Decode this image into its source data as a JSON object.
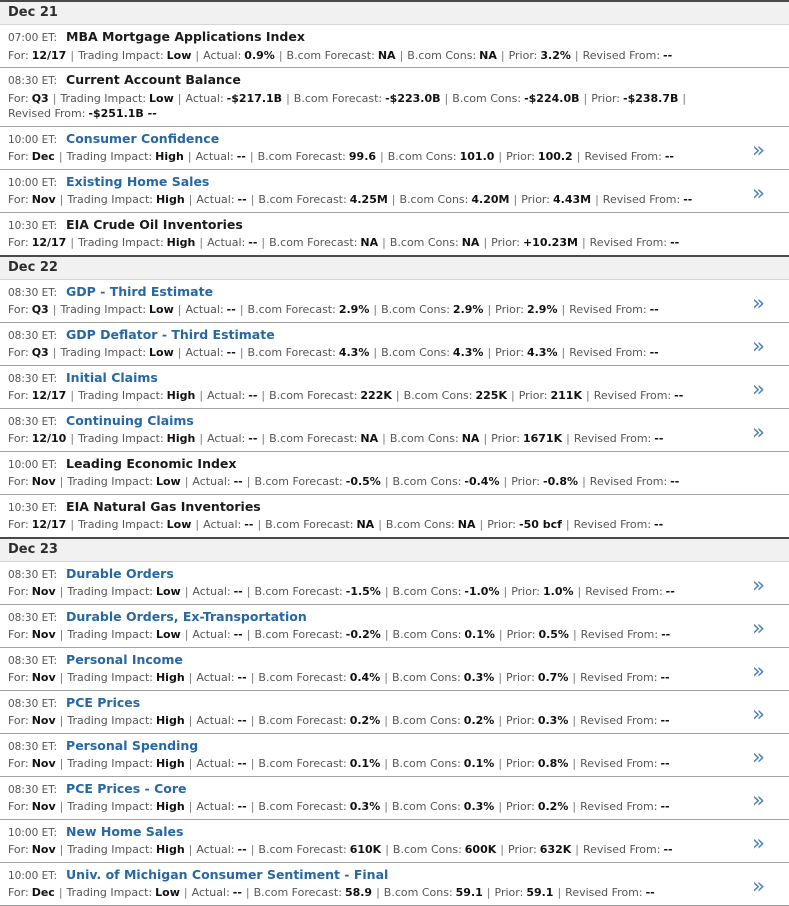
{
  "calendar": {
    "chevron": "»",
    "separator": "|",
    "detail_labels": [
      "For:",
      "Trading Impact:",
      "Actual:",
      "B.com Forecast:",
      "B.com Cons:",
      "Prior:",
      "Revised From:"
    ],
    "colors": {
      "link_blue": "#2767a3",
      "chevron_blue": "#4e81b5",
      "header_background": "#f1f1f1",
      "divider_gray": "#a3a3a3"
    },
    "days": [
      {
        "date": "Dec 21",
        "events": [
          {
            "time": "07:00 ET:",
            "title": "MBA Mortgage Applications Index",
            "link": false,
            "chevron": false,
            "values": [
              "12/17",
              "Low",
              "0.9%",
              "NA",
              "NA",
              "3.2%",
              "--"
            ]
          },
          {
            "time": "08:30 ET:",
            "title": "Current Account Balance",
            "link": false,
            "chevron": false,
            "wrap_before_last": true,
            "values": [
              "Q3",
              "Low",
              "-$217.1B",
              "-$223.0B",
              "-$224.0B",
              "-$238.7B",
              "-$251.1B --"
            ]
          },
          {
            "time": "10:00 ET:",
            "title": "Consumer Confidence",
            "link": true,
            "chevron": true,
            "values": [
              "Dec",
              "High",
              "--",
              "99.6",
              "101.0",
              "100.2",
              "--"
            ]
          },
          {
            "time": "10:00 ET:",
            "title": "Existing Home Sales",
            "link": true,
            "chevron": true,
            "values": [
              "Nov",
              "High",
              "--",
              "4.25M",
              "4.20M",
              "4.43M",
              "--"
            ]
          },
          {
            "time": "10:30 ET:",
            "title": "EIA Crude Oil Inventories",
            "link": false,
            "chevron": false,
            "values": [
              "12/17",
              "High",
              "--",
              "NA",
              "NA",
              "+10.23M",
              "--"
            ]
          }
        ]
      },
      {
        "date": "Dec 22",
        "events": [
          {
            "time": "08:30 ET:",
            "title": "GDP - Third Estimate",
            "link": true,
            "chevron": true,
            "values": [
              "Q3",
              "Low",
              "--",
              "2.9%",
              "2.9%",
              "2.9%",
              "--"
            ]
          },
          {
            "time": "08:30 ET:",
            "title": "GDP Deflator - Third Estimate",
            "link": true,
            "chevron": true,
            "values": [
              "Q3",
              "Low",
              "--",
              "4.3%",
              "4.3%",
              "4.3%",
              "--"
            ]
          },
          {
            "time": "08:30 ET:",
            "title": "Initial Claims",
            "link": true,
            "chevron": true,
            "values": [
              "12/17",
              "High",
              "--",
              "222K",
              "225K",
              "211K",
              "--"
            ]
          },
          {
            "time": "08:30 ET:",
            "title": "Continuing Claims",
            "link": true,
            "chevron": true,
            "values": [
              "12/10",
              "High",
              "--",
              "NA",
              "NA",
              "1671K",
              "--"
            ]
          },
          {
            "time": "10:00 ET:",
            "title": "Leading Economic Index",
            "link": false,
            "chevron": false,
            "values": [
              "Nov",
              "Low",
              "--",
              "-0.5%",
              "-0.4%",
              "-0.8%",
              "--"
            ]
          },
          {
            "time": "10:30 ET:",
            "title": "EIA Natural Gas Inventories",
            "link": false,
            "chevron": false,
            "values": [
              "12/17",
              "Low",
              "--",
              "NA",
              "NA",
              "-50 bcf",
              "--"
            ]
          }
        ]
      },
      {
        "date": "Dec 23",
        "events": [
          {
            "time": "08:30 ET:",
            "title": "Durable Orders",
            "link": true,
            "chevron": true,
            "values": [
              "Nov",
              "Low",
              "--",
              "-1.5%",
              "-1.0%",
              "1.0%",
              "--"
            ]
          },
          {
            "time": "08:30 ET:",
            "title": "Durable Orders, Ex-Transportation",
            "link": true,
            "chevron": true,
            "values": [
              "Nov",
              "Low",
              "--",
              "-0.2%",
              "0.1%",
              "0.5%",
              "--"
            ]
          },
          {
            "time": "08:30 ET:",
            "title": "Personal Income",
            "link": true,
            "chevron": true,
            "values": [
              "Nov",
              "High",
              "--",
              "0.4%",
              "0.3%",
              "0.7%",
              "--"
            ]
          },
          {
            "time": "08:30 ET:",
            "title": "PCE Prices",
            "link": true,
            "chevron": true,
            "values": [
              "Nov",
              "High",
              "--",
              "0.2%",
              "0.2%",
              "0.3%",
              "--"
            ]
          },
          {
            "time": "08:30 ET:",
            "title": "Personal Spending",
            "link": true,
            "chevron": true,
            "values": [
              "Nov",
              "High",
              "--",
              "0.1%",
              "0.1%",
              "0.8%",
              "--"
            ]
          },
          {
            "time": "08:30 ET:",
            "title": "PCE Prices - Core",
            "link": true,
            "chevron": true,
            "values": [
              "Nov",
              "High",
              "--",
              "0.3%",
              "0.3%",
              "0.2%",
              "--"
            ]
          },
          {
            "time": "10:00 ET:",
            "title": "New Home Sales",
            "link": true,
            "chevron": true,
            "values": [
              "Nov",
              "High",
              "--",
              "610K",
              "600K",
              "632K",
              "--"
            ]
          },
          {
            "time": "10:00 ET:",
            "title": "Univ. of Michigan Consumer Sentiment - Final",
            "link": true,
            "chevron": true,
            "values": [
              "Dec",
              "Low",
              "--",
              "58.9",
              "59.1",
              "59.1",
              "--"
            ]
          }
        ]
      }
    ]
  }
}
